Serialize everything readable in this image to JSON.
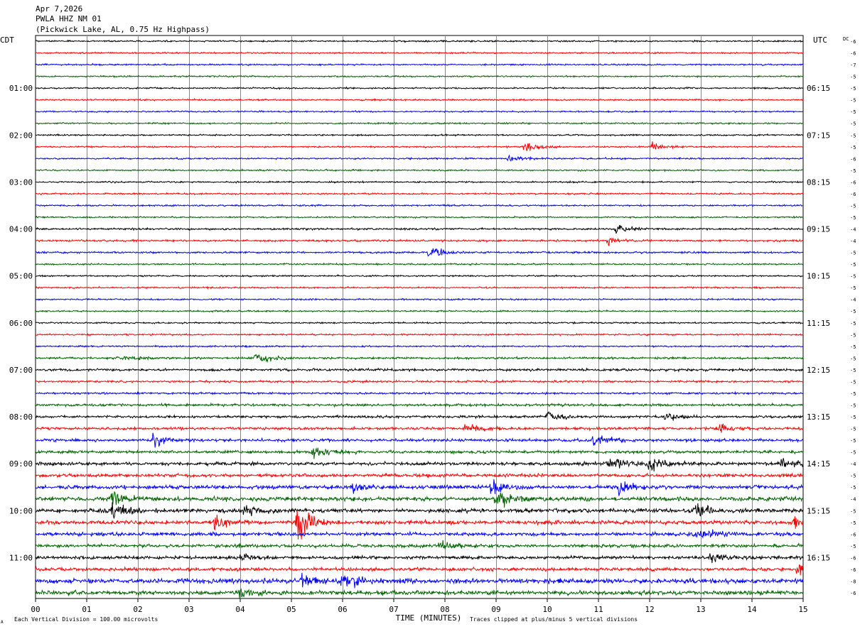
{
  "header": {
    "line1": "Apr 7,2026",
    "line2": "PWLA HHZ NM 01",
    "line3": "(Pickwick Lake, AL, 0.75 Hz Highpass)"
  },
  "labels": {
    "left_tz": "CDT",
    "right_tz": "UTC",
    "dc": "DC",
    "xlabel": "TIME (MINUTES)",
    "footer_left": "Each Vertical Division =  100.00 microvolts",
    "footer_right": "Traces clipped at plus/minus 5 vertical divisions",
    "corner_mark": "A"
  },
  "chart_data": {
    "type": "line",
    "title": "PWLA HHZ NM 01",
    "xlabel": "TIME (MINUTES)",
    "xlim": [
      0,
      15
    ],
    "x_ticks": [
      "00",
      "01",
      "02",
      "03",
      "04",
      "05",
      "06",
      "07",
      "08",
      "09",
      "10",
      "11",
      "12",
      "13",
      "14",
      "15"
    ],
    "trace_count": 48,
    "trace_colors": [
      "#000000",
      "#ff0000",
      "#0000ff",
      "#006400"
    ],
    "left_hour_labels": [
      {
        "trace": 4,
        "label": "01:00"
      },
      {
        "trace": 8,
        "label": "02:00"
      },
      {
        "trace": 12,
        "label": "03:00"
      },
      {
        "trace": 16,
        "label": "04:00"
      },
      {
        "trace": 20,
        "label": "05:00"
      },
      {
        "trace": 24,
        "label": "06:00"
      },
      {
        "trace": 28,
        "label": "07:00"
      },
      {
        "trace": 32,
        "label": "08:00"
      },
      {
        "trace": 36,
        "label": "09:00"
      },
      {
        "trace": 40,
        "label": "10:00"
      },
      {
        "trace": 44,
        "label": "11:00"
      }
    ],
    "right_hour_labels": [
      {
        "trace": 4,
        "label": "06:15"
      },
      {
        "trace": 8,
        "label": "07:15"
      },
      {
        "trace": 12,
        "label": "08:15"
      },
      {
        "trace": 16,
        "label": "09:15"
      },
      {
        "trace": 20,
        "label": "10:15"
      },
      {
        "trace": 24,
        "label": "11:15"
      },
      {
        "trace": 28,
        "label": "12:15"
      },
      {
        "trace": 32,
        "label": "13:15"
      },
      {
        "trace": 36,
        "label": "14:15"
      },
      {
        "trace": 40,
        "label": "15:15"
      },
      {
        "trace": 44,
        "label": "16:15"
      }
    ],
    "dc_offsets": [
      "-6",
      "-6",
      "-7",
      "-5",
      "-5",
      "-5",
      "-5",
      "-5",
      "-5",
      "-5",
      "-6",
      "-5",
      "-6",
      "-6",
      "-5",
      "-5",
      "-4",
      "-4",
      "-5",
      "-5",
      "-5",
      "-5",
      "-4",
      "-5",
      "-5",
      "-5",
      "-5",
      "-5",
      "-5",
      "-5",
      "-5",
      "-5",
      "-5",
      "-5",
      "-5",
      "-5",
      "-4",
      "-5",
      "-5",
      "-4",
      "-5",
      "-5",
      "-6",
      "-5",
      "-6",
      "-6",
      "-8",
      "-6"
    ],
    "noise_levels": [
      1,
      1,
      1,
      1,
      1,
      1,
      1,
      1,
      1,
      1,
      1,
      1,
      1,
      1,
      1,
      1,
      1.2,
      1.2,
      1.2,
      1,
      1,
      1,
      1,
      1,
      1,
      1,
      1,
      1.3,
      1.6,
      1.3,
      1.3,
      1.6,
      1.6,
      1.7,
      1.8,
      1.9,
      2.2,
      2,
      2.4,
      2.7,
      2.6,
      2.5,
      2.3,
      2.1,
      2,
      2.1,
      3,
      2.6
    ],
    "events": [
      {
        "trace": 9,
        "minute": 9.55,
        "amp": 6
      },
      {
        "trace": 9,
        "minute": 12.05,
        "amp": 5
      },
      {
        "trace": 10,
        "minute": 9.25,
        "amp": 4
      },
      {
        "trace": 16,
        "minute": 11.35,
        "amp": 8
      },
      {
        "trace": 17,
        "minute": 11.2,
        "amp": 5
      },
      {
        "trace": 18,
        "minute": 7.7,
        "amp": 8
      },
      {
        "trace": 27,
        "minute": 1.7,
        "amp": 5
      },
      {
        "trace": 27,
        "minute": 4.3,
        "amp": 9
      },
      {
        "trace": 32,
        "minute": 10.0,
        "amp": 6
      },
      {
        "trace": 32,
        "minute": 12.3,
        "amp": 6
      },
      {
        "trace": 33,
        "minute": 8.4,
        "amp": 7
      },
      {
        "trace": 33,
        "minute": 13.3,
        "amp": 6
      },
      {
        "trace": 34,
        "minute": 2.3,
        "amp": 9
      },
      {
        "trace": 34,
        "minute": 10.9,
        "amp": 8
      },
      {
        "trace": 35,
        "minute": 5.4,
        "amp": 9
      },
      {
        "trace": 36,
        "minute": 11.2,
        "amp": 9
      },
      {
        "trace": 36,
        "minute": 12.0,
        "amp": 10
      },
      {
        "trace": 36,
        "minute": 14.6,
        "amp": 9
      },
      {
        "trace": 38,
        "minute": 8.9,
        "amp": 9
      },
      {
        "trace": 38,
        "minute": 11.4,
        "amp": 10
      },
      {
        "trace": 38,
        "minute": 6.2,
        "amp": 6
      },
      {
        "trace": 39,
        "minute": 1.5,
        "amp": 10
      },
      {
        "trace": 39,
        "minute": 9.0,
        "amp": 11
      },
      {
        "trace": 40,
        "minute": 1.5,
        "amp": 8
      },
      {
        "trace": 40,
        "minute": 4.1,
        "amp": 8
      },
      {
        "trace": 40,
        "minute": 12.9,
        "amp": 8
      },
      {
        "trace": 41,
        "minute": 5.1,
        "amp": 28
      },
      {
        "trace": 41,
        "minute": 3.5,
        "amp": 9
      },
      {
        "trace": 41,
        "minute": 14.8,
        "amp": 7
      },
      {
        "trace": 42,
        "minute": 12.9,
        "amp": 9
      },
      {
        "trace": 43,
        "minute": 7.9,
        "amp": 7
      },
      {
        "trace": 44,
        "minute": 13.2,
        "amp": 10
      },
      {
        "trace": 44,
        "minute": 4.0,
        "amp": 5
      },
      {
        "trace": 45,
        "minute": 14.9,
        "amp": 9
      },
      {
        "trace": 46,
        "minute": 6.0,
        "amp": 12
      },
      {
        "trace": 46,
        "minute": 5.2,
        "amp": 9
      },
      {
        "trace": 47,
        "minute": 4.0,
        "amp": 8
      }
    ]
  }
}
